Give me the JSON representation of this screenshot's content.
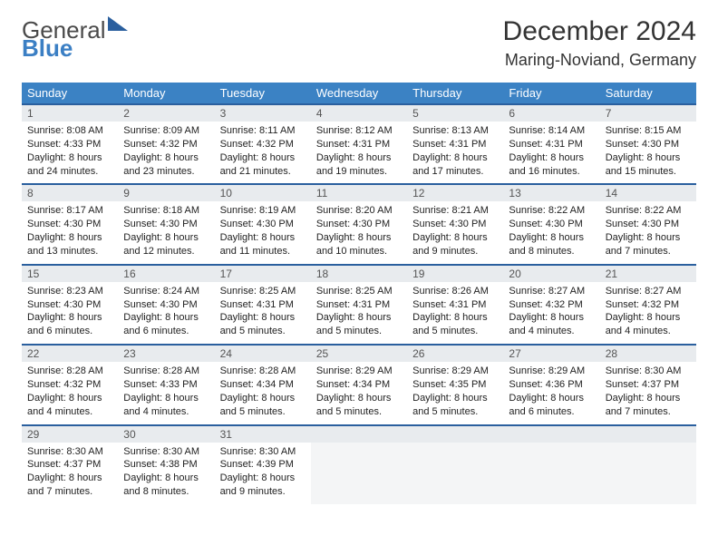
{
  "logo": {
    "line1": "General",
    "line2": "Blue"
  },
  "title": "December 2024",
  "location": "Maring-Noviand, Germany",
  "columns": [
    "Sunday",
    "Monday",
    "Tuesday",
    "Wednesday",
    "Thursday",
    "Friday",
    "Saturday"
  ],
  "colors": {
    "header_bg": "#3b82c4",
    "header_text": "#ffffff",
    "rule": "#2a5f9e",
    "daynum_bg": "#e8ebee",
    "body_text": "#222222",
    "page_bg": "#ffffff"
  },
  "type": "table",
  "weeks": [
    [
      {
        "n": "1",
        "sr": "Sunrise: 8:08 AM",
        "ss": "Sunset: 4:33 PM",
        "dl": "Daylight: 8 hours and 24 minutes."
      },
      {
        "n": "2",
        "sr": "Sunrise: 8:09 AM",
        "ss": "Sunset: 4:32 PM",
        "dl": "Daylight: 8 hours and 23 minutes."
      },
      {
        "n": "3",
        "sr": "Sunrise: 8:11 AM",
        "ss": "Sunset: 4:32 PM",
        "dl": "Daylight: 8 hours and 21 minutes."
      },
      {
        "n": "4",
        "sr": "Sunrise: 8:12 AM",
        "ss": "Sunset: 4:31 PM",
        "dl": "Daylight: 8 hours and 19 minutes."
      },
      {
        "n": "5",
        "sr": "Sunrise: 8:13 AM",
        "ss": "Sunset: 4:31 PM",
        "dl": "Daylight: 8 hours and 17 minutes."
      },
      {
        "n": "6",
        "sr": "Sunrise: 8:14 AM",
        "ss": "Sunset: 4:31 PM",
        "dl": "Daylight: 8 hours and 16 minutes."
      },
      {
        "n": "7",
        "sr": "Sunrise: 8:15 AM",
        "ss": "Sunset: 4:30 PM",
        "dl": "Daylight: 8 hours and 15 minutes."
      }
    ],
    [
      {
        "n": "8",
        "sr": "Sunrise: 8:17 AM",
        "ss": "Sunset: 4:30 PM",
        "dl": "Daylight: 8 hours and 13 minutes."
      },
      {
        "n": "9",
        "sr": "Sunrise: 8:18 AM",
        "ss": "Sunset: 4:30 PM",
        "dl": "Daylight: 8 hours and 12 minutes."
      },
      {
        "n": "10",
        "sr": "Sunrise: 8:19 AM",
        "ss": "Sunset: 4:30 PM",
        "dl": "Daylight: 8 hours and 11 minutes."
      },
      {
        "n": "11",
        "sr": "Sunrise: 8:20 AM",
        "ss": "Sunset: 4:30 PM",
        "dl": "Daylight: 8 hours and 10 minutes."
      },
      {
        "n": "12",
        "sr": "Sunrise: 8:21 AM",
        "ss": "Sunset: 4:30 PM",
        "dl": "Daylight: 8 hours and 9 minutes."
      },
      {
        "n": "13",
        "sr": "Sunrise: 8:22 AM",
        "ss": "Sunset: 4:30 PM",
        "dl": "Daylight: 8 hours and 8 minutes."
      },
      {
        "n": "14",
        "sr": "Sunrise: 8:22 AM",
        "ss": "Sunset: 4:30 PM",
        "dl": "Daylight: 8 hours and 7 minutes."
      }
    ],
    [
      {
        "n": "15",
        "sr": "Sunrise: 8:23 AM",
        "ss": "Sunset: 4:30 PM",
        "dl": "Daylight: 8 hours and 6 minutes."
      },
      {
        "n": "16",
        "sr": "Sunrise: 8:24 AM",
        "ss": "Sunset: 4:30 PM",
        "dl": "Daylight: 8 hours and 6 minutes."
      },
      {
        "n": "17",
        "sr": "Sunrise: 8:25 AM",
        "ss": "Sunset: 4:31 PM",
        "dl": "Daylight: 8 hours and 5 minutes."
      },
      {
        "n": "18",
        "sr": "Sunrise: 8:25 AM",
        "ss": "Sunset: 4:31 PM",
        "dl": "Daylight: 8 hours and 5 minutes."
      },
      {
        "n": "19",
        "sr": "Sunrise: 8:26 AM",
        "ss": "Sunset: 4:31 PM",
        "dl": "Daylight: 8 hours and 5 minutes."
      },
      {
        "n": "20",
        "sr": "Sunrise: 8:27 AM",
        "ss": "Sunset: 4:32 PM",
        "dl": "Daylight: 8 hours and 4 minutes."
      },
      {
        "n": "21",
        "sr": "Sunrise: 8:27 AM",
        "ss": "Sunset: 4:32 PM",
        "dl": "Daylight: 8 hours and 4 minutes."
      }
    ],
    [
      {
        "n": "22",
        "sr": "Sunrise: 8:28 AM",
        "ss": "Sunset: 4:32 PM",
        "dl": "Daylight: 8 hours and 4 minutes."
      },
      {
        "n": "23",
        "sr": "Sunrise: 8:28 AM",
        "ss": "Sunset: 4:33 PM",
        "dl": "Daylight: 8 hours and 4 minutes."
      },
      {
        "n": "24",
        "sr": "Sunrise: 8:28 AM",
        "ss": "Sunset: 4:34 PM",
        "dl": "Daylight: 8 hours and 5 minutes."
      },
      {
        "n": "25",
        "sr": "Sunrise: 8:29 AM",
        "ss": "Sunset: 4:34 PM",
        "dl": "Daylight: 8 hours and 5 minutes."
      },
      {
        "n": "26",
        "sr": "Sunrise: 8:29 AM",
        "ss": "Sunset: 4:35 PM",
        "dl": "Daylight: 8 hours and 5 minutes."
      },
      {
        "n": "27",
        "sr": "Sunrise: 8:29 AM",
        "ss": "Sunset: 4:36 PM",
        "dl": "Daylight: 8 hours and 6 minutes."
      },
      {
        "n": "28",
        "sr": "Sunrise: 8:30 AM",
        "ss": "Sunset: 4:37 PM",
        "dl": "Daylight: 8 hours and 7 minutes."
      }
    ],
    [
      {
        "n": "29",
        "sr": "Sunrise: 8:30 AM",
        "ss": "Sunset: 4:37 PM",
        "dl": "Daylight: 8 hours and 7 minutes."
      },
      {
        "n": "30",
        "sr": "Sunrise: 8:30 AM",
        "ss": "Sunset: 4:38 PM",
        "dl": "Daylight: 8 hours and 8 minutes."
      },
      {
        "n": "31",
        "sr": "Sunrise: 8:30 AM",
        "ss": "Sunset: 4:39 PM",
        "dl": "Daylight: 8 hours and 9 minutes."
      },
      null,
      null,
      null,
      null
    ]
  ]
}
